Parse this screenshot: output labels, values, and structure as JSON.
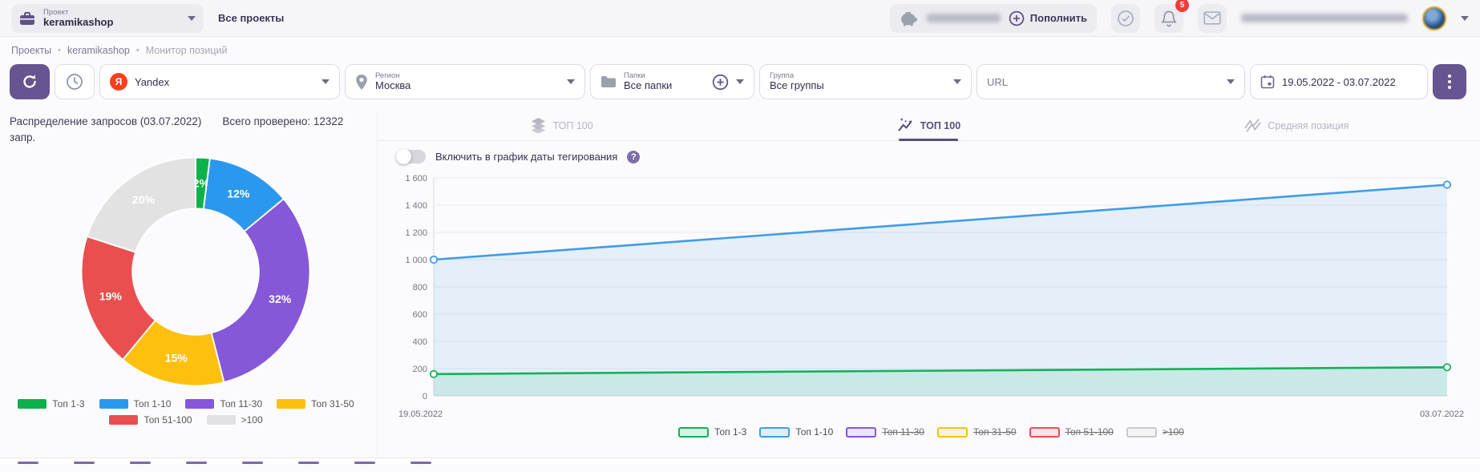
{
  "header": {
    "project": {
      "label": "Проект",
      "value": "keramikashop"
    },
    "all_projects_label": "Все проекты",
    "balance": {
      "topup_label": "Пополнить"
    },
    "notifications_count": "5"
  },
  "breadcrumb": {
    "items": [
      "Проекты",
      "keramikashop",
      "Монитор позиций"
    ],
    "separator": "•"
  },
  "toolbar": {
    "search_engine": {
      "value": "Yandex"
    },
    "region": {
      "label": "Регион",
      "value": "Москва"
    },
    "folders": {
      "label": "Папки",
      "value": "Все папки"
    },
    "groups": {
      "label": "Группа",
      "value": "Все группы"
    },
    "url_placeholder": "URL",
    "date_range": "19.05.2022 - 03.07.2022"
  },
  "distribution": {
    "title": "Распределение запросов (03.07.2022)",
    "total_checked": "Всего проверено: 12322 запр."
  },
  "tabs": [
    {
      "label": "ТОП 100",
      "icon": "layers-icon",
      "active": false
    },
    {
      "label": "ТОП 100",
      "icon": "pulse-icon",
      "active": true
    },
    {
      "label": "Средняя позиция",
      "icon": "avg-position-icon",
      "active": false
    }
  ],
  "tagging_toggle": {
    "label": "Включить в график даты тегирования",
    "state": "off"
  },
  "colors": {
    "accent": "#665590",
    "badge": "#f23b3b",
    "yandex": "#fc3f1d"
  },
  "chart_data": [
    {
      "type": "pie",
      "donut": true,
      "title": "Распределение запросов (03.07.2022)",
      "labels": [
        "Топ 1-3",
        "Топ 1-10",
        "Топ 11-30",
        "Топ 31-50",
        "Топ 51-100",
        ">100"
      ],
      "values": [
        2,
        12,
        32,
        15,
        19,
        20
      ],
      "value_labels": [
        "2%",
        "12%",
        "32%",
        "15%",
        "19%",
        "20%"
      ],
      "colors": [
        "#0db14b",
        "#2b98f0",
        "#8657d8",
        "#fdc00f",
        "#ea4f4f",
        "#e2e2e2"
      ],
      "legend_position": "bottom"
    },
    {
      "type": "line",
      "x": [
        "19.05.2022",
        "03.07.2022"
      ],
      "series": [
        {
          "name": "Топ 1-3",
          "values": [
            160,
            210
          ],
          "color": "#12b259",
          "visible": true
        },
        {
          "name": "Топ 1-10",
          "values": [
            1000,
            1550
          ],
          "color": "#3f9ce9",
          "visible": true
        },
        {
          "name": "Топ 11-30",
          "values": null,
          "color": "#8657d8",
          "visible": false
        },
        {
          "name": "Топ 31-50",
          "values": null,
          "color": "#fdc00f",
          "visible": false
        },
        {
          "name": "Топ 51-100",
          "values": null,
          "color": "#ea4f4f",
          "visible": false
        },
        {
          "name": ">100",
          "values": null,
          "color": "#c9c9c9",
          "visible": false
        }
      ],
      "ylim": [
        0,
        1600
      ],
      "ytick_step": 200,
      "yticks": [
        "0",
        "200",
        "400",
        "600",
        "800",
        "1 000",
        "1 200",
        "1 400",
        "1 600"
      ],
      "grid": true,
      "area_fill": true,
      "legend_position": "bottom"
    }
  ]
}
